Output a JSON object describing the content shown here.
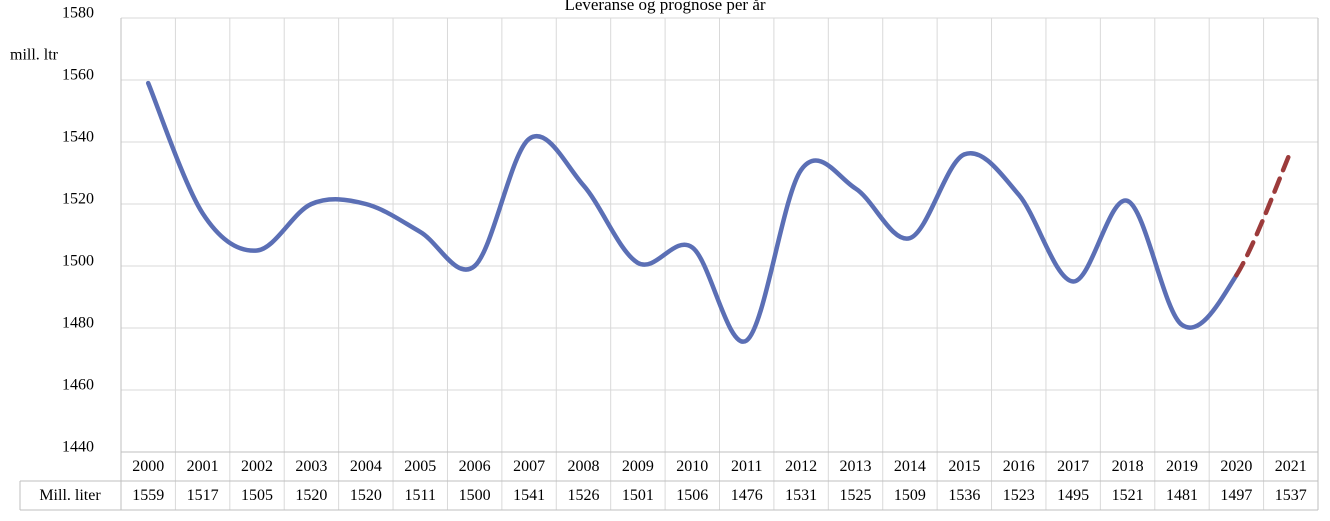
{
  "chart_data": {
    "type": "line",
    "title": "Leveranse og prognose per år",
    "y_label": "mill. ltr",
    "categories": [
      "2000",
      "2001",
      "2002",
      "2003",
      "2004",
      "2005",
      "2006",
      "2007",
      "2008",
      "2009",
      "2010",
      "2011",
      "2012",
      "2013",
      "2014",
      "2015",
      "2016",
      "2017",
      "2018",
      "2019",
      "2020",
      "2021"
    ],
    "series": [
      {
        "name": "Mill. liter",
        "color": "#5b6fb5",
        "dashed_color": "#9c3b3b",
        "values": [
          1559,
          1517,
          1505,
          1520,
          1520,
          1511,
          1500,
          1541,
          1526,
          1501,
          1506,
          1476,
          1531,
          1525,
          1509,
          1536,
          1523,
          1495,
          1521,
          1481,
          1497,
          1537
        ],
        "dashed": [
          false,
          false,
          false,
          false,
          false,
          false,
          false,
          false,
          false,
          false,
          false,
          false,
          false,
          false,
          false,
          false,
          false,
          false,
          false,
          false,
          false,
          true
        ]
      }
    ],
    "ylim": [
      1440,
      1580
    ],
    "yticks": [
      1440,
      1460,
      1480,
      1500,
      1520,
      1540,
      1560,
      1580
    ],
    "grid": true,
    "smooth": true
  }
}
